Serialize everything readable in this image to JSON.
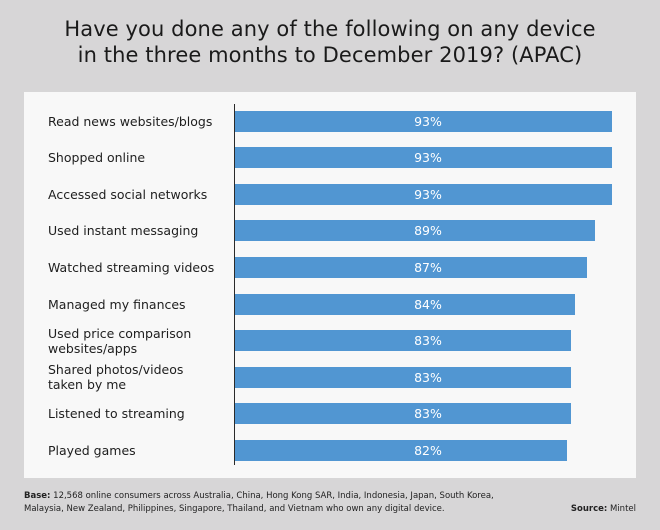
{
  "chart_data": {
    "type": "bar",
    "orientation": "horizontal",
    "title": "Have you done any of the following on any device in the three months to December 2019? (APAC)",
    "title_lines": [
      "Have you done any of the following on any device",
      "in the three months to December 2019? (APAC)"
    ],
    "categories": [
      "Read news websites/blogs",
      "Shopped online",
      "Accessed social networks",
      "Used instant messaging",
      "Watched streaming videos",
      "Managed my finances",
      "Used price comparison websites/apps",
      "Shared photos/videos taken by me",
      "Listened to streaming",
      "Played games"
    ],
    "category_lines": [
      [
        "Read news websites/blogs"
      ],
      [
        "Shopped online"
      ],
      [
        "Accessed social networks"
      ],
      [
        "Used instant messaging"
      ],
      [
        "Watched streaming videos"
      ],
      [
        "Managed my finances"
      ],
      [
        "Used price comparison",
        "websites/apps"
      ],
      [
        "Shared photos/videos",
        "taken by me"
      ],
      [
        "Listened to streaming"
      ],
      [
        "Played games"
      ]
    ],
    "values": [
      93,
      93,
      93,
      89,
      87,
      84,
      83,
      83,
      83,
      82
    ],
    "value_labels": [
      "93%",
      "93%",
      "93%",
      "89%",
      "87%",
      "84%",
      "83%",
      "83%",
      "83%",
      "82%"
    ],
    "unit": "%",
    "xlabel": "",
    "ylabel": "",
    "xlim": [
      0,
      100
    ],
    "grid": false,
    "legend": "none",
    "bar_color": "#5196d2"
  },
  "footer": {
    "base_label": "Base:",
    "base_text_line1": " 12,568 online consumers across Australia, China, Hong Kong SAR, India, Indonesia, Japan, South Korea,",
    "base_text_line2": "Malaysia, New Zealand, Philippines, Singapore, Thailand, and Vietnam who own any digital device.",
    "source_label": "Source:",
    "source_text": " Mintel"
  }
}
